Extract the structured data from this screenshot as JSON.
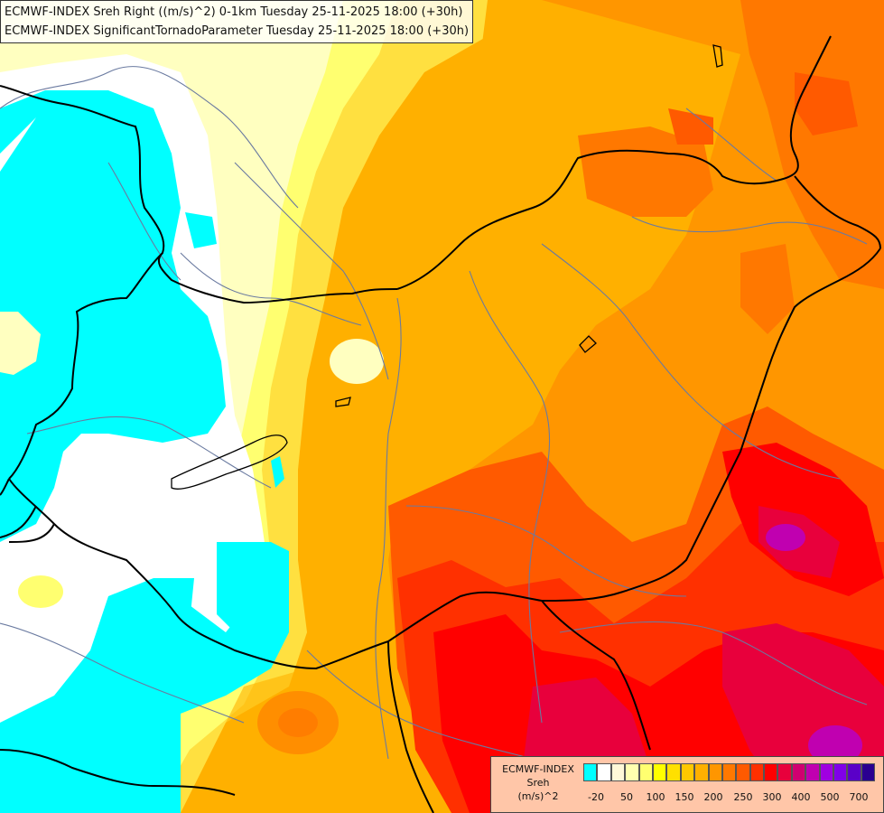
{
  "header": {
    "line1": "ECMWF-INDEX Sreh Right ((m/s)^2) 0-1km Tuesday 25-11-2025 18:00 (+30h)",
    "line2": "ECMWF-INDEX SignificantTornadoParameter Tuesday 25-11-2025 18:00 (+30h)"
  },
  "legend": {
    "model": "ECMWF-INDEX",
    "variable": "Sreh",
    "unit": "(m/s)^2",
    "colors": [
      "#00ffff",
      "#ffffff",
      "#fff8d8",
      "#ffffb0",
      "#ffff70",
      "#ffff00",
      "#ffe000",
      "#ffc800",
      "#ffb000",
      "#ff9600",
      "#ff7800",
      "#ff5a00",
      "#ff3000",
      "#ff0000",
      "#e8003c",
      "#d00070",
      "#c000b0",
      "#a000e0",
      "#8000e8",
      "#5a00c8",
      "#2a0090"
    ],
    "ticks": [
      "-20",
      "50",
      "100",
      "150",
      "200",
      "250",
      "300",
      "400",
      "500",
      "700"
    ]
  },
  "colors": {
    "cyan": "#00ffff",
    "white": "#ffffff",
    "pale_yellow": "#ffffc0",
    "yellow": "#ffff00",
    "gold": "#ffd000",
    "orange": "#ffa000",
    "dark_orange": "#ff7000",
    "red_orange": "#ff4000",
    "red": "#ff0000",
    "crimson": "#e0005a",
    "magenta": "#c0009a",
    "border": "#000000",
    "river": "#6a7aa0"
  }
}
